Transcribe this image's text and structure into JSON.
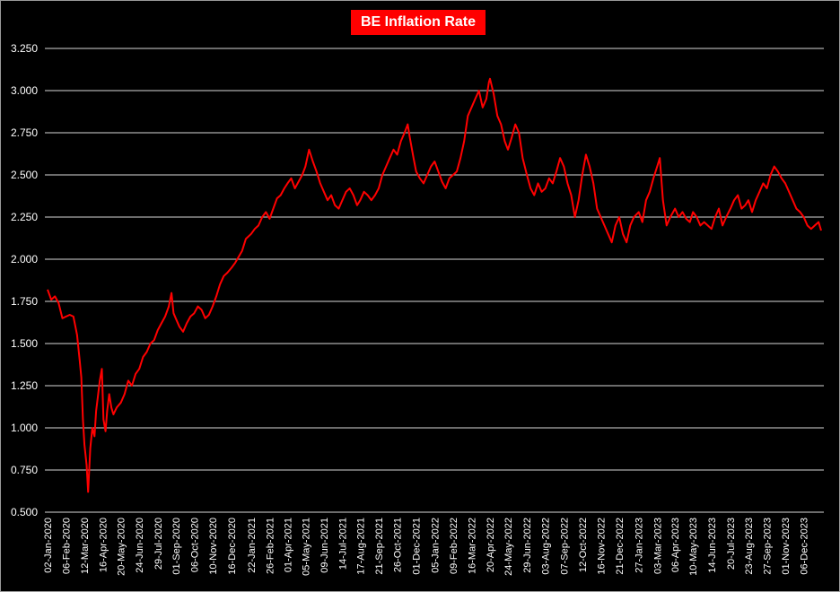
{
  "chart_data": {
    "type": "line",
    "title": "BE Inflation Rate",
    "xlabel": "",
    "ylabel": "",
    "ylim": [
      0.5,
      3.25
    ],
    "y_ticks": [
      "3.250",
      "3.000",
      "2.750",
      "2.500",
      "2.250",
      "2.000",
      "1.750",
      "1.500",
      "1.250",
      "1.000",
      "0.750",
      "0.500"
    ],
    "x_ticks": [
      "02-Jan-2020",
      "06-Feb-2020",
      "12-Mar-2020",
      "16-Apr-2020",
      "20-May-2020",
      "24-Jun-2020",
      "29-Jul-2020",
      "01-Sep-2020",
      "06-Oct-2020",
      "10-Nov-2020",
      "16-Dec-2020",
      "22-Jan-2021",
      "26-Feb-2021",
      "01-Apr-2021",
      "05-May-2021",
      "09-Jun-2021",
      "14-Jul-2021",
      "17-Aug-2021",
      "21-Sep-2021",
      "26-Oct-2021",
      "01-Dec-2021",
      "05-Jan-2022",
      "09-Feb-2022",
      "16-Mar-2022",
      "20-Apr-2022",
      "24-May-2022",
      "29-Jun-2022",
      "03-Aug-2022",
      "07-Sep-2022",
      "12-Oct-2022",
      "16-Nov-2022",
      "21-Dec-2022",
      "27-Jan-2023",
      "03-Mar-2023",
      "06-Apr-2023",
      "10-May-2023",
      "14-Jun-2023",
      "20-Jul-2023",
      "23-Aug-2023",
      "27-Sep-2023",
      "01-Nov-2023",
      "06-Dec-2023"
    ],
    "grid": true,
    "legend": "none",
    "line_color": "#ff0000",
    "series": [
      {
        "values": [
          [
            "2020-01-02",
            1.82
          ],
          [
            "2020-01-09",
            1.76
          ],
          [
            "2020-01-16",
            1.78
          ],
          [
            "2020-01-23",
            1.74
          ],
          [
            "2020-01-30",
            1.65
          ],
          [
            "2020-02-06",
            1.66
          ],
          [
            "2020-02-13",
            1.67
          ],
          [
            "2020-02-20",
            1.66
          ],
          [
            "2020-02-27",
            1.55
          ],
          [
            "2020-03-03",
            1.4
          ],
          [
            "2020-03-06",
            1.3
          ],
          [
            "2020-03-09",
            1.05
          ],
          [
            "2020-03-12",
            0.9
          ],
          [
            "2020-03-16",
            0.78
          ],
          [
            "2020-03-19",
            0.62
          ],
          [
            "2020-03-23",
            0.88
          ],
          [
            "2020-03-27",
            1.0
          ],
          [
            "2020-03-31",
            0.95
          ],
          [
            "2020-04-03",
            1.1
          ],
          [
            "2020-04-07",
            1.2
          ],
          [
            "2020-04-10",
            1.28
          ],
          [
            "2020-04-14",
            1.35
          ],
          [
            "2020-04-17",
            1.05
          ],
          [
            "2020-04-21",
            0.98
          ],
          [
            "2020-04-24",
            1.1
          ],
          [
            "2020-04-28",
            1.2
          ],
          [
            "2020-05-02",
            1.12
          ],
          [
            "2020-05-06",
            1.08
          ],
          [
            "2020-05-12",
            1.12
          ],
          [
            "2020-05-20",
            1.15
          ],
          [
            "2020-05-27",
            1.2
          ],
          [
            "2020-06-03",
            1.28
          ],
          [
            "2020-06-10",
            1.25
          ],
          [
            "2020-06-17",
            1.32
          ],
          [
            "2020-06-24",
            1.35
          ],
          [
            "2020-07-01",
            1.42
          ],
          [
            "2020-07-08",
            1.45
          ],
          [
            "2020-07-15",
            1.5
          ],
          [
            "2020-07-22",
            1.52
          ],
          [
            "2020-07-29",
            1.58
          ],
          [
            "2020-08-05",
            1.62
          ],
          [
            "2020-08-12",
            1.66
          ],
          [
            "2020-08-19",
            1.72
          ],
          [
            "2020-08-24",
            1.8
          ],
          [
            "2020-08-28",
            1.68
          ],
          [
            "2020-09-01",
            1.65
          ],
          [
            "2020-09-08",
            1.6
          ],
          [
            "2020-09-15",
            1.57
          ],
          [
            "2020-09-22",
            1.62
          ],
          [
            "2020-09-29",
            1.66
          ],
          [
            "2020-10-06",
            1.68
          ],
          [
            "2020-10-13",
            1.72
          ],
          [
            "2020-10-20",
            1.7
          ],
          [
            "2020-10-27",
            1.65
          ],
          [
            "2020-11-03",
            1.67
          ],
          [
            "2020-11-10",
            1.72
          ],
          [
            "2020-11-17",
            1.78
          ],
          [
            "2020-11-24",
            1.85
          ],
          [
            "2020-12-01",
            1.9
          ],
          [
            "2020-12-08",
            1.92
          ],
          [
            "2020-12-16",
            1.95
          ],
          [
            "2020-12-23",
            1.98
          ],
          [
            "2021-01-05",
            2.05
          ],
          [
            "2021-01-12",
            2.12
          ],
          [
            "2021-01-22",
            2.15
          ],
          [
            "2021-01-29",
            2.18
          ],
          [
            "2021-02-05",
            2.2
          ],
          [
            "2021-02-12",
            2.25
          ],
          [
            "2021-02-19",
            2.28
          ],
          [
            "2021-02-26",
            2.24
          ],
          [
            "2021-03-05",
            2.3
          ],
          [
            "2021-03-12",
            2.36
          ],
          [
            "2021-03-19",
            2.38
          ],
          [
            "2021-03-26",
            2.42
          ],
          [
            "2021-04-01",
            2.45
          ],
          [
            "2021-04-08",
            2.48
          ],
          [
            "2021-04-15",
            2.42
          ],
          [
            "2021-04-22",
            2.46
          ],
          [
            "2021-04-29",
            2.5
          ],
          [
            "2021-05-05",
            2.55
          ],
          [
            "2021-05-12",
            2.65
          ],
          [
            "2021-05-19",
            2.58
          ],
          [
            "2021-05-26",
            2.52
          ],
          [
            "2021-06-02",
            2.45
          ],
          [
            "2021-06-09",
            2.4
          ],
          [
            "2021-06-16",
            2.35
          ],
          [
            "2021-06-23",
            2.38
          ],
          [
            "2021-06-30",
            2.32
          ],
          [
            "2021-07-07",
            2.3
          ],
          [
            "2021-07-14",
            2.35
          ],
          [
            "2021-07-21",
            2.4
          ],
          [
            "2021-07-28",
            2.42
          ],
          [
            "2021-08-04",
            2.38
          ],
          [
            "2021-08-11",
            2.32
          ],
          [
            "2021-08-17",
            2.35
          ],
          [
            "2021-08-24",
            2.4
          ],
          [
            "2021-08-31",
            2.38
          ],
          [
            "2021-09-07",
            2.35
          ],
          [
            "2021-09-14",
            2.38
          ],
          [
            "2021-09-21",
            2.42
          ],
          [
            "2021-09-28",
            2.5
          ],
          [
            "2021-10-05",
            2.55
          ],
          [
            "2021-10-12",
            2.6
          ],
          [
            "2021-10-19",
            2.65
          ],
          [
            "2021-10-26",
            2.62
          ],
          [
            "2021-11-02",
            2.7
          ],
          [
            "2021-11-09",
            2.75
          ],
          [
            "2021-11-15",
            2.8
          ],
          [
            "2021-11-19",
            2.72
          ],
          [
            "2021-11-26",
            2.6
          ],
          [
            "2021-12-01",
            2.52
          ],
          [
            "2021-12-08",
            2.48
          ],
          [
            "2021-12-15",
            2.45
          ],
          [
            "2021-12-22",
            2.5
          ],
          [
            "2021-12-29",
            2.55
          ],
          [
            "2022-01-05",
            2.58
          ],
          [
            "2022-01-12",
            2.52
          ],
          [
            "2022-01-19",
            2.46
          ],
          [
            "2022-01-26",
            2.42
          ],
          [
            "2022-02-02",
            2.48
          ],
          [
            "2022-02-09",
            2.5
          ],
          [
            "2022-02-16",
            2.52
          ],
          [
            "2022-02-23",
            2.6
          ],
          [
            "2022-03-02",
            2.7
          ],
          [
            "2022-03-09",
            2.85
          ],
          [
            "2022-03-16",
            2.9
          ],
          [
            "2022-03-23",
            2.95
          ],
          [
            "2022-03-30",
            3.0
          ],
          [
            "2022-04-06",
            2.9
          ],
          [
            "2022-04-13",
            2.95
          ],
          [
            "2022-04-18",
            3.05
          ],
          [
            "2022-04-20",
            3.07
          ],
          [
            "2022-04-27",
            2.98
          ],
          [
            "2022-05-04",
            2.85
          ],
          [
            "2022-05-11",
            2.8
          ],
          [
            "2022-05-18",
            2.7
          ],
          [
            "2022-05-24",
            2.65
          ],
          [
            "2022-05-31",
            2.72
          ],
          [
            "2022-06-07",
            2.8
          ],
          [
            "2022-06-14",
            2.75
          ],
          [
            "2022-06-21",
            2.6
          ],
          [
            "2022-06-29",
            2.5
          ],
          [
            "2022-07-06",
            2.42
          ],
          [
            "2022-07-13",
            2.38
          ],
          [
            "2022-07-20",
            2.45
          ],
          [
            "2022-07-27",
            2.4
          ],
          [
            "2022-08-03",
            2.42
          ],
          [
            "2022-08-10",
            2.48
          ],
          [
            "2022-08-17",
            2.45
          ],
          [
            "2022-08-24",
            2.52
          ],
          [
            "2022-08-31",
            2.6
          ],
          [
            "2022-09-07",
            2.55
          ],
          [
            "2022-09-14",
            2.45
          ],
          [
            "2022-09-21",
            2.38
          ],
          [
            "2022-09-28",
            2.25
          ],
          [
            "2022-10-05",
            2.35
          ],
          [
            "2022-10-12",
            2.5
          ],
          [
            "2022-10-19",
            2.62
          ],
          [
            "2022-10-26",
            2.55
          ],
          [
            "2022-11-02",
            2.45
          ],
          [
            "2022-11-09",
            2.3
          ],
          [
            "2022-11-16",
            2.25
          ],
          [
            "2022-11-23",
            2.2
          ],
          [
            "2022-11-30",
            2.15
          ],
          [
            "2022-12-07",
            2.1
          ],
          [
            "2022-12-14",
            2.2
          ],
          [
            "2022-12-21",
            2.25
          ],
          [
            "2022-12-28",
            2.15
          ],
          [
            "2023-01-04",
            2.1
          ],
          [
            "2023-01-11",
            2.2
          ],
          [
            "2023-01-18",
            2.25
          ],
          [
            "2023-01-27",
            2.28
          ],
          [
            "2023-02-03",
            2.22
          ],
          [
            "2023-02-10",
            2.35
          ],
          [
            "2023-02-17",
            2.4
          ],
          [
            "2023-02-24",
            2.48
          ],
          [
            "2023-03-03",
            2.55
          ],
          [
            "2023-03-08",
            2.6
          ],
          [
            "2023-03-14",
            2.35
          ],
          [
            "2023-03-21",
            2.2
          ],
          [
            "2023-03-28",
            2.25
          ],
          [
            "2023-04-06",
            2.3
          ],
          [
            "2023-04-13",
            2.25
          ],
          [
            "2023-04-20",
            2.28
          ],
          [
            "2023-04-27",
            2.24
          ],
          [
            "2023-05-04",
            2.22
          ],
          [
            "2023-05-10",
            2.28
          ],
          [
            "2023-05-17",
            2.25
          ],
          [
            "2023-05-24",
            2.2
          ],
          [
            "2023-05-31",
            2.22
          ],
          [
            "2023-06-07",
            2.2
          ],
          [
            "2023-06-14",
            2.18
          ],
          [
            "2023-06-21",
            2.25
          ],
          [
            "2023-06-28",
            2.3
          ],
          [
            "2023-07-05",
            2.2
          ],
          [
            "2023-07-12",
            2.25
          ],
          [
            "2023-07-20",
            2.3
          ],
          [
            "2023-07-27",
            2.35
          ],
          [
            "2023-08-03",
            2.38
          ],
          [
            "2023-08-10",
            2.3
          ],
          [
            "2023-08-17",
            2.32
          ],
          [
            "2023-08-23",
            2.35
          ],
          [
            "2023-08-30",
            2.28
          ],
          [
            "2023-09-06",
            2.35
          ],
          [
            "2023-09-13",
            2.4
          ],
          [
            "2023-09-20",
            2.45
          ],
          [
            "2023-09-27",
            2.42
          ],
          [
            "2023-10-04",
            2.5
          ],
          [
            "2023-10-11",
            2.55
          ],
          [
            "2023-10-18",
            2.52
          ],
          [
            "2023-10-25",
            2.48
          ],
          [
            "2023-11-01",
            2.45
          ],
          [
            "2023-11-08",
            2.4
          ],
          [
            "2023-11-15",
            2.35
          ],
          [
            "2023-11-22",
            2.3
          ],
          [
            "2023-11-29",
            2.28
          ],
          [
            "2023-12-06",
            2.25
          ],
          [
            "2023-12-13",
            2.2
          ],
          [
            "2023-12-20",
            2.18
          ],
          [
            "2023-12-27",
            2.2
          ],
          [
            "2024-01-03",
            2.22
          ],
          [
            "2024-01-08",
            2.17
          ]
        ]
      }
    ]
  }
}
